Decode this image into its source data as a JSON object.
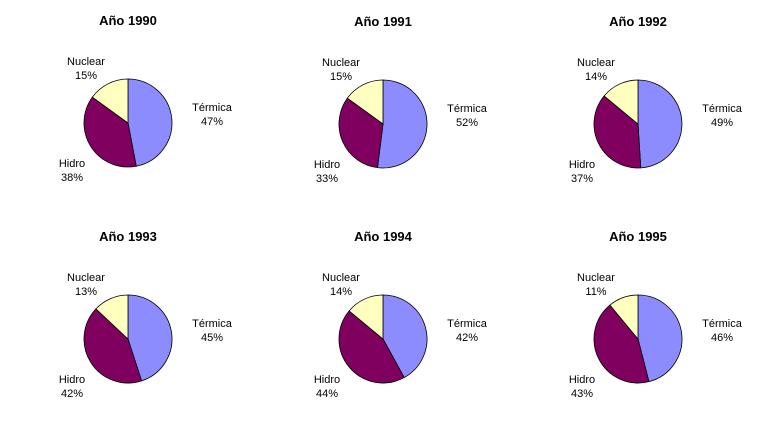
{
  "chart_data": [
    {
      "type": "pie",
      "title": "Año 1990",
      "slices": [
        {
          "label": "Térmica",
          "value": 47,
          "text": "47%",
          "color": "#8c8cff"
        },
        {
          "label": "Hidro",
          "value": 38,
          "text": "38%",
          "color": "#800060"
        },
        {
          "label": "Nuclear",
          "value": 15,
          "text": "15%",
          "color": "#ffffc0"
        }
      ]
    },
    {
      "type": "pie",
      "title": "Año 1991",
      "slices": [
        {
          "label": "Térmica",
          "value": 52,
          "text": "52%",
          "color": "#8c8cff"
        },
        {
          "label": "Hidro",
          "value": 33,
          "text": "33%",
          "color": "#800060"
        },
        {
          "label": "Nuclear",
          "value": 15,
          "text": "15%",
          "color": "#ffffc0"
        }
      ]
    },
    {
      "type": "pie",
      "title": "Año 1992",
      "slices": [
        {
          "label": "Térmica",
          "value": 49,
          "text": "49%",
          "color": "#8c8cff"
        },
        {
          "label": "Hidro",
          "value": 37,
          "text": "37%",
          "color": "#800060"
        },
        {
          "label": "Nuclear",
          "value": 14,
          "text": "14%",
          "color": "#ffffc0"
        }
      ]
    },
    {
      "type": "pie",
      "title": "Año 1993",
      "slices": [
        {
          "label": "Térmica",
          "value": 45,
          "text": "45%",
          "color": "#8c8cff"
        },
        {
          "label": "Hidro",
          "value": 42,
          "text": "42%",
          "color": "#800060"
        },
        {
          "label": "Nuclear",
          "value": 13,
          "text": "13%",
          "color": "#ffffc0"
        }
      ]
    },
    {
      "type": "pie",
      "title": "Año 1994",
      "slices": [
        {
          "label": "Térmica",
          "value": 42,
          "text": "42%",
          "color": "#8c8cff"
        },
        {
          "label": "Hidro",
          "value": 44,
          "text": "44%",
          "color": "#800060"
        },
        {
          "label": "Nuclear",
          "value": 14,
          "text": "14%",
          "color": "#ffffc0"
        }
      ]
    },
    {
      "type": "pie",
      "title": "Año 1995",
      "slices": [
        {
          "label": "Térmica",
          "value": 46,
          "text": "46%",
          "color": "#8c8cff"
        },
        {
          "label": "Hidro",
          "value": 43,
          "text": "43%",
          "color": "#800060"
        },
        {
          "label": "Nuclear",
          "value": 11,
          "text": "11%",
          "color": "#ffffc0"
        }
      ]
    }
  ]
}
